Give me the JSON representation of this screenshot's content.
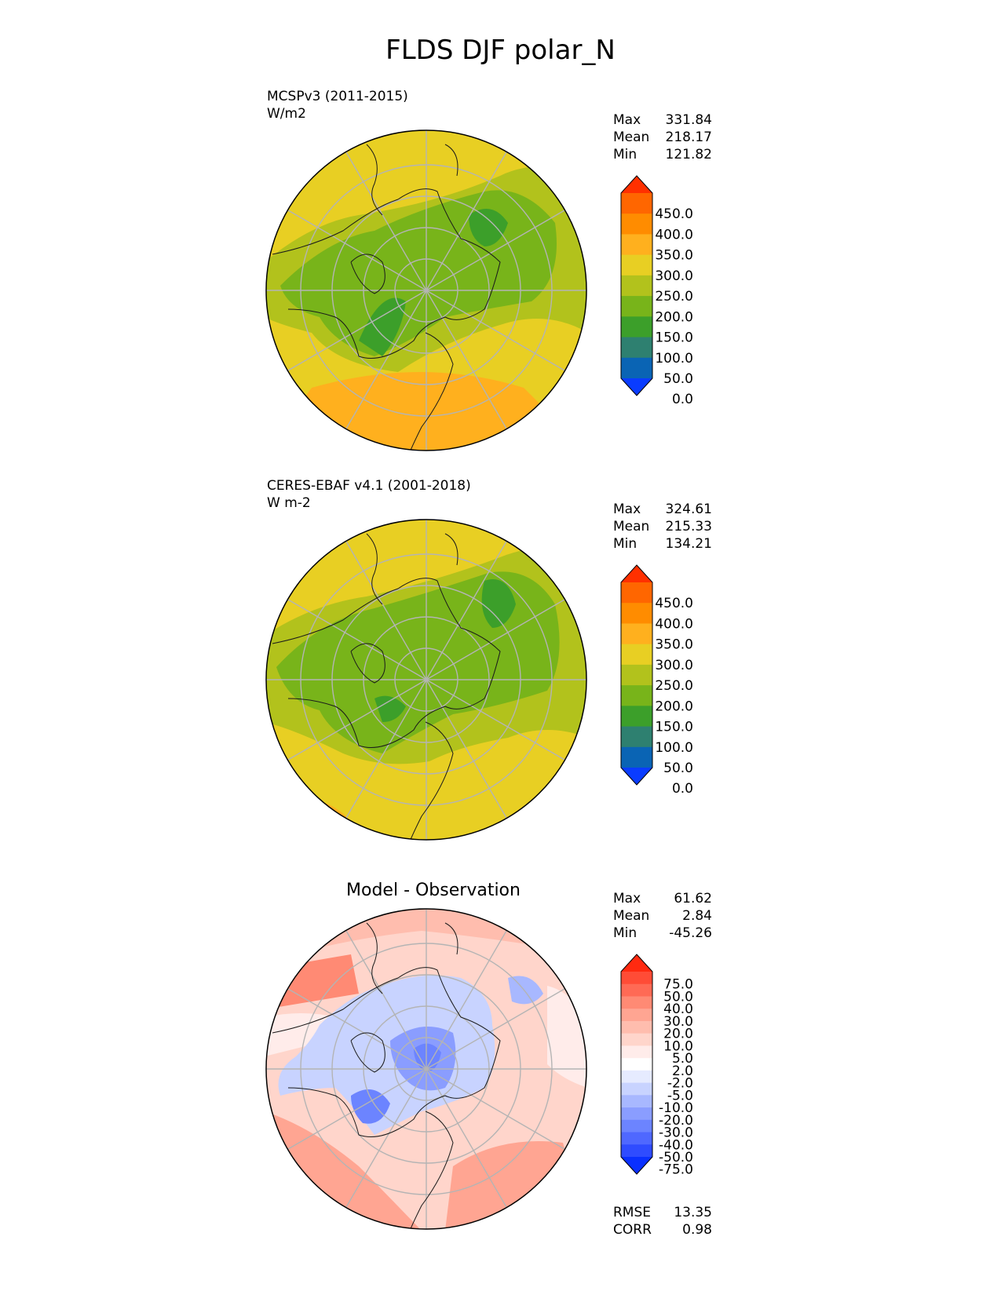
{
  "title": "FLDS DJF polar_N",
  "panels": [
    {
      "name": "MCSPv3 (2011-2015)",
      "units": "W/m2",
      "stats": [
        {
          "label": "Max",
          "value": "331.84"
        },
        {
          "label": "Mean",
          "value": "218.17"
        },
        {
          "label": "Min",
          "value": "121.82"
        }
      ]
    },
    {
      "name": "CERES-EBAF v4.1 (2001-2018)",
      "units": "W m-2",
      "stats": [
        {
          "label": "Max",
          "value": "324.61"
        },
        {
          "label": "Mean",
          "value": "215.33"
        },
        {
          "label": "Min",
          "value": "134.21"
        }
      ]
    },
    {
      "title": "Model - Observation",
      "stats": [
        {
          "label": "Max",
          "value": "61.62"
        },
        {
          "label": "Mean",
          "value": "2.84"
        },
        {
          "label": "Min",
          "value": "-45.26"
        }
      ],
      "metrics": [
        {
          "label": "RMSE",
          "value": "13.35"
        },
        {
          "label": "CORR",
          "value": "0.98"
        }
      ]
    }
  ],
  "colorbar_abs": {
    "ticks": [
      "450.0",
      "400.0",
      "350.0",
      "300.0",
      "250.0",
      "200.0",
      "150.0",
      "100.0",
      "50.0",
      "0.0"
    ],
    "colors": [
      "#ff3000",
      "#ff6600",
      "#ff8c00",
      "#ffb01e",
      "#e8cf23",
      "#b2c21c",
      "#78b41a",
      "#3c9f2a",
      "#2e8070",
      "#0a64b4",
      "#0a3cff"
    ]
  },
  "colorbar_diff": {
    "ticks": [
      "75.0",
      "50.0",
      "40.0",
      "30.0",
      "20.0",
      "10.0",
      "5.0",
      "2.0",
      "-2.0",
      "-5.0",
      "-10.0",
      "-20.0",
      "-30.0",
      "-40.0",
      "-50.0",
      "-75.0"
    ],
    "colors": [
      "#ff2a10",
      "#ff4c36",
      "#ff6a55",
      "#ff8a74",
      "#ffa592",
      "#ffbdae",
      "#ffd5cb",
      "#ffecea",
      "#ffffff",
      "#e6ebff",
      "#c8d3ff",
      "#a8b8ff",
      "#8a9dff",
      "#6c84ff",
      "#4f68ff",
      "#2f4cff",
      "#0a30ff"
    ]
  }
}
